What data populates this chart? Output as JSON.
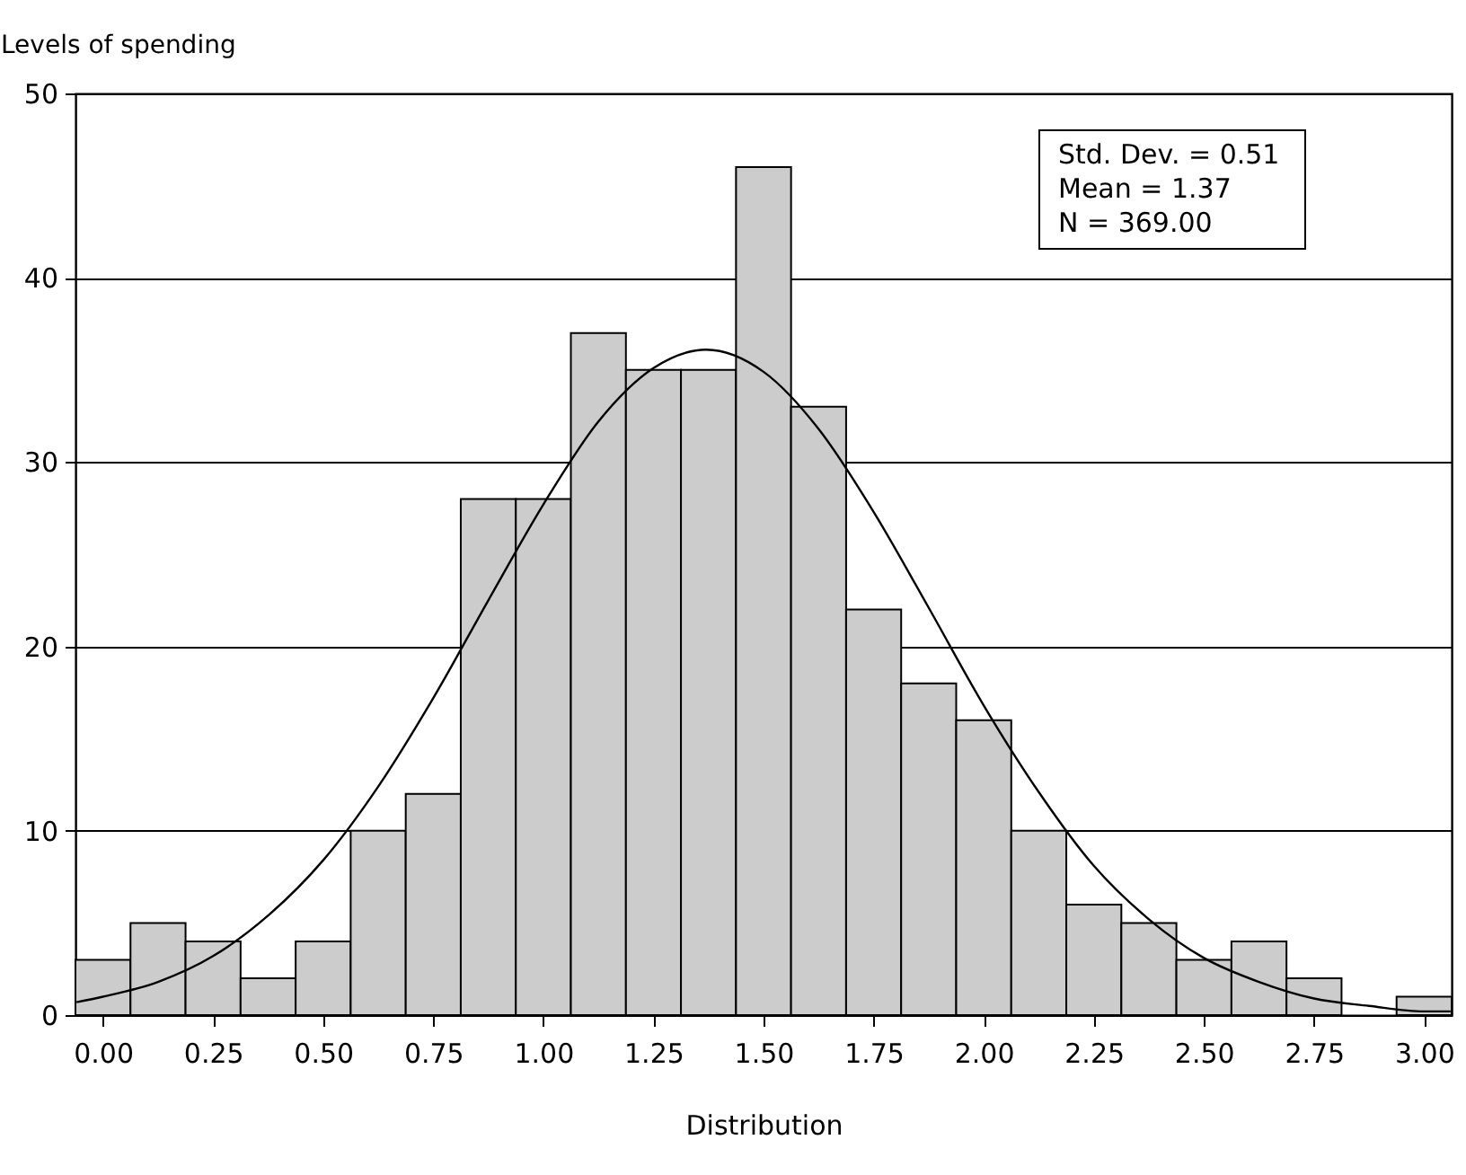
{
  "chart_data": {
    "type": "histogram",
    "xlabel": "Distribution",
    "ylabel": "Levels of spending",
    "bins": [
      -0.0625,
      0.0625,
      0.1875,
      0.3125,
      0.4375,
      0.5625,
      0.6875,
      0.8125,
      0.9375,
      1.0625,
      1.1875,
      1.3125,
      1.4375,
      1.5625,
      1.6875,
      1.8125,
      1.9375,
      2.0625,
      2.1875,
      2.3125,
      2.4375,
      2.5625,
      2.6875,
      2.8125,
      2.9375,
      3.0625
    ],
    "values": [
      3,
      5,
      4,
      2,
      4,
      10,
      12,
      28,
      28,
      37,
      35,
      35,
      46,
      33,
      22,
      18,
      16,
      10,
      6,
      5,
      3,
      4,
      2,
      0,
      1
    ],
    "color": "#cccccc",
    "series": [
      {
        "type": "line",
        "color": "#000000",
        "x": [
          -0.06,
          0,
          0.125,
          0.25,
          0.375,
          0.5,
          0.625,
          0.75,
          0.875,
          1,
          1.125,
          1.25,
          1.37,
          1.5,
          1.625,
          1.75,
          1.875,
          2,
          2.125,
          2.25,
          2.375,
          2.5,
          2.625,
          2.75,
          2.875,
          3,
          3.06
        ],
        "values": [
          0.7,
          1,
          1.8,
          3.2,
          5.4,
          8.4,
          12.4,
          17.2,
          22.5,
          27.7,
          32.2,
          35.1,
          36.1,
          34.9,
          31.8,
          27.3,
          22.1,
          16.8,
          12.1,
          8.1,
          5.2,
          3.1,
          1.8,
          0.9,
          0.5,
          0.2,
          0.2
        ]
      }
    ],
    "xlim": [
      -0.0625,
      3.0625
    ],
    "xticks": [
      {
        "value": 0,
        "label": "0.00"
      },
      {
        "value": 0.25,
        "label": "0.25"
      },
      {
        "value": 0.5,
        "label": "0.50"
      },
      {
        "value": 0.75,
        "label": "0.75"
      },
      {
        "value": 1,
        "label": "1.00"
      },
      {
        "value": 1.25,
        "label": "1.25"
      },
      {
        "value": 1.5,
        "label": "1.50"
      },
      {
        "value": 1.75,
        "label": "1.75"
      },
      {
        "value": 2,
        "label": "2.00"
      },
      {
        "value": 2.25,
        "label": "2.25"
      },
      {
        "value": 2.5,
        "label": "2.50"
      },
      {
        "value": 2.75,
        "label": "2.75"
      },
      {
        "value": 3,
        "label": "3.00"
      }
    ],
    "ylim": [
      0,
      50
    ],
    "yticks": [
      0,
      10,
      20,
      30,
      40,
      50
    ],
    "grid": "y",
    "annotations": [
      "Std. Dev. = 0.51",
      "Mean = 1.37",
      "N = 369.00"
    ]
  }
}
